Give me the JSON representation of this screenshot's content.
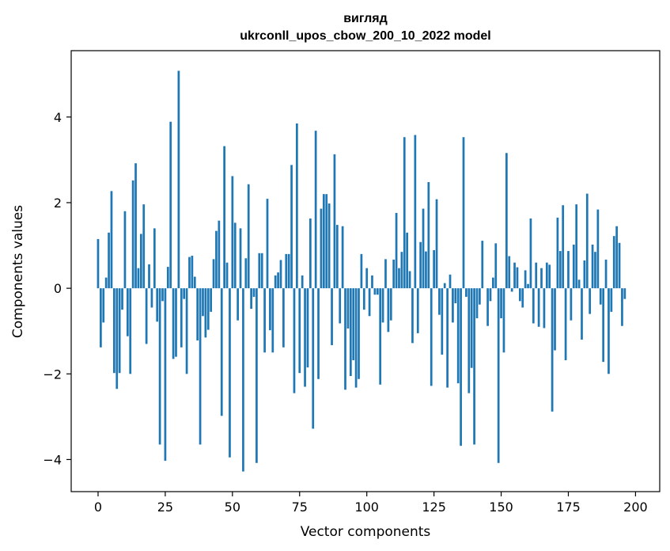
{
  "chart_data": {
    "type": "bar",
    "title": "вигляд",
    "subtitle": "ukrconll_upos_cbow_200_10_2022 model",
    "xlabel": "Vector components",
    "ylabel": "Components values",
    "xlim": [
      -10,
      209
    ],
    "ylim": [
      -4.75,
      5.55
    ],
    "xticks": [
      0,
      25,
      50,
      75,
      100,
      125,
      150,
      175,
      200
    ],
    "yticks": [
      -4,
      -2,
      0,
      2,
      4
    ],
    "ytick_labels": [
      "−4",
      "−2",
      "0",
      "2",
      "4"
    ],
    "grid": false,
    "bar_color": "#1f77b4",
    "values": [
      1.15,
      -1.38,
      -0.8,
      0.25,
      1.3,
      2.27,
      -1.98,
      -2.35,
      -1.98,
      -0.5,
      1.8,
      -1.12,
      -2.0,
      2.52,
      2.92,
      0.47,
      1.27,
      1.96,
      -1.3,
      0.56,
      -0.45,
      1.4,
      -0.78,
      -3.65,
      -0.3,
      -4.03,
      0.5,
      3.89,
      -1.65,
      -1.6,
      5.08,
      -1.38,
      -0.25,
      -2.0,
      0.73,
      0.76,
      0.27,
      -1.22,
      -3.65,
      -0.65,
      -1.15,
      -0.97,
      -0.55,
      0.68,
      1.34,
      1.58,
      -2.98,
      3.32,
      0.6,
      -3.95,
      2.62,
      1.53,
      -0.75,
      1.4,
      -4.28,
      0.7,
      2.43,
      -0.48,
      -0.2,
      -4.08,
      0.82,
      0.82,
      -1.5,
      2.09,
      -0.98,
      -1.5,
      0.3,
      0.37,
      0.66,
      -1.38,
      0.8,
      0.8,
      2.88,
      -2.45,
      3.85,
      -1.98,
      0.3,
      -2.3,
      -1.85,
      1.63,
      -3.28,
      3.68,
      -2.12,
      1.86,
      2.2,
      2.2,
      1.98,
      -1.33,
      3.13,
      1.48,
      -0.82,
      1.45,
      -2.37,
      -0.94,
      -2.05,
      -1.68,
      -2.32,
      -2.12,
      0.8,
      -0.5,
      0.47,
      -0.65,
      0.3,
      -0.15,
      -0.15,
      -2.25,
      -0.8,
      0.68,
      -1.02,
      -0.75,
      0.67,
      1.76,
      0.47,
      0.85,
      3.53,
      1.3,
      0.4,
      -1.28,
      3.58,
      -1.05,
      1.08,
      1.86,
      0.86,
      2.48,
      -2.28,
      0.89,
      2.08,
      -0.62,
      -1.55,
      0.12,
      -2.32,
      0.32,
      -0.8,
      -0.35,
      -2.22,
      -3.68,
      3.53,
      -0.2,
      -2.45,
      -1.86,
      -3.65,
      -0.7,
      -0.38,
      1.11,
      0.0,
      -0.88,
      -0.3,
      0.25,
      1.05,
      -4.08,
      -0.7,
      -1.5,
      3.16,
      0.75,
      -0.08,
      0.6,
      0.49,
      -0.3,
      -0.45,
      0.42,
      0.1,
      1.63,
      -0.82,
      0.6,
      -0.9,
      0.47,
      -0.93,
      0.6,
      0.55,
      -2.88,
      -1.45,
      1.65,
      0.87,
      1.94,
      -1.68,
      0.87,
      -0.75,
      1.02,
      1.96,
      0.2,
      -1.2,
      0.65,
      2.21,
      -0.6,
      1.02,
      0.85,
      1.84,
      -0.38,
      -1.72,
      0.67,
      -2.0,
      -0.55,
      1.22,
      1.45,
      1.06,
      -0.88,
      -0.25
    ]
  }
}
